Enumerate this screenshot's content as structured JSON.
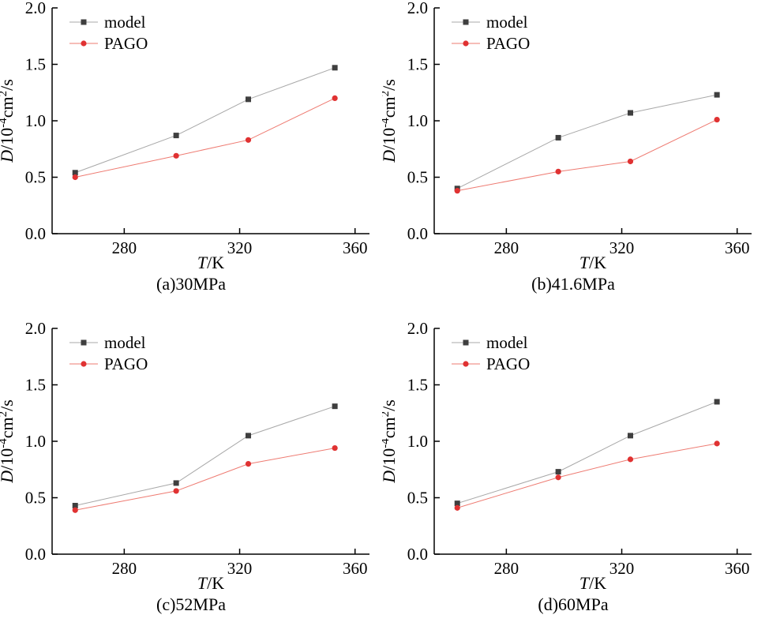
{
  "page": {
    "background": "#ffffff"
  },
  "chart_data": [
    {
      "type": "line",
      "caption": "(a)30MPa",
      "xlabel_text": "T/K",
      "ylabel_text": "D/10^-4 cm^2/s",
      "xlabel_parts": [
        {
          "t": "T",
          "italic": true
        },
        {
          "t": "/K"
        }
      ],
      "ylabel_parts": [
        {
          "t": "D",
          "italic": true
        },
        {
          "t": "/10"
        },
        {
          "t": "-4",
          "sup": true
        },
        {
          "t": "cm"
        },
        {
          "t": "2",
          "sup": true
        },
        {
          "t": "/s"
        }
      ],
      "xlim": [
        255,
        365
      ],
      "ylim": [
        0,
        2
      ],
      "xticks": [
        280,
        320,
        360
      ],
      "yticks": [
        "0.0",
        "0.5",
        "1.0",
        "1.5",
        "2.0"
      ],
      "x": [
        263,
        298,
        323,
        353
      ],
      "series": [
        {
          "name": "model",
          "marker": "square",
          "marker_color": "#3f3f3f",
          "line_color": "#a8a8a8",
          "values": [
            0.54,
            0.87,
            1.19,
            1.47
          ]
        },
        {
          "name": "PAGO",
          "marker": "circle",
          "marker_color": "#e03232",
          "line_color": "#ee7b72",
          "values": [
            0.5,
            0.69,
            0.83,
            1.2
          ]
        }
      ]
    },
    {
      "type": "line",
      "caption": "(b)41.6MPa",
      "xlabel_text": "T/K",
      "ylabel_text": "D/10^-4 cm^2/s",
      "xlabel_parts": [
        {
          "t": "T",
          "italic": true
        },
        {
          "t": "/K"
        }
      ],
      "ylabel_parts": [
        {
          "t": "D",
          "italic": true
        },
        {
          "t": "/10"
        },
        {
          "t": "-4",
          "sup": true
        },
        {
          "t": "cm"
        },
        {
          "t": "2",
          "sup": true
        },
        {
          "t": "/s"
        }
      ],
      "xlim": [
        255,
        365
      ],
      "ylim": [
        0,
        2
      ],
      "xticks": [
        280,
        320,
        360
      ],
      "yticks": [
        "0.0",
        "0.5",
        "1.0",
        "1.5",
        "2.0"
      ],
      "x": [
        263,
        298,
        323,
        353
      ],
      "series": [
        {
          "name": "model",
          "marker": "square",
          "marker_color": "#3f3f3f",
          "line_color": "#a8a8a8",
          "values": [
            0.4,
            0.85,
            1.07,
            1.23
          ]
        },
        {
          "name": "PAGO",
          "marker": "circle",
          "marker_color": "#e03232",
          "line_color": "#ee7b72",
          "values": [
            0.38,
            0.55,
            0.64,
            1.01
          ]
        }
      ]
    },
    {
      "type": "line",
      "caption": "(c)52MPa",
      "xlabel_text": "T/K",
      "ylabel_text": "D/10^-4 cm^2/s",
      "xlabel_parts": [
        {
          "t": "T",
          "italic": true
        },
        {
          "t": "/K"
        }
      ],
      "ylabel_parts": [
        {
          "t": "D",
          "italic": true
        },
        {
          "t": "/10"
        },
        {
          "t": "-4",
          "sup": true
        },
        {
          "t": "cm"
        },
        {
          "t": "2",
          "sup": true
        },
        {
          "t": "/s"
        }
      ],
      "xlim": [
        255,
        365
      ],
      "ylim": [
        0,
        2
      ],
      "xticks": [
        280,
        320,
        360
      ],
      "yticks": [
        "0.0",
        "0.5",
        "1.0",
        "1.5",
        "2.0"
      ],
      "x": [
        263,
        298,
        323,
        353
      ],
      "series": [
        {
          "name": "model",
          "marker": "square",
          "marker_color": "#3f3f3f",
          "line_color": "#a8a8a8",
          "values": [
            0.43,
            0.63,
            1.05,
            1.31
          ]
        },
        {
          "name": "PAGO",
          "marker": "circle",
          "marker_color": "#e03232",
          "line_color": "#ee7b72",
          "values": [
            0.39,
            0.56,
            0.8,
            0.94
          ]
        }
      ]
    },
    {
      "type": "line",
      "caption": "(d)60MPa",
      "xlabel_text": "T/K",
      "ylabel_text": "D/10^-4 cm^2/s",
      "xlabel_parts": [
        {
          "t": "T",
          "italic": true
        },
        {
          "t": "/K"
        }
      ],
      "ylabel_parts": [
        {
          "t": "D",
          "italic": true
        },
        {
          "t": "/10"
        },
        {
          "t": "-4",
          "sup": true
        },
        {
          "t": "cm"
        },
        {
          "t": "2",
          "sup": true
        },
        {
          "t": "/s"
        }
      ],
      "xlim": [
        255,
        365
      ],
      "ylim": [
        0,
        2
      ],
      "xticks": [
        280,
        320,
        360
      ],
      "yticks": [
        "0.0",
        "0.5",
        "1.0",
        "1.5",
        "2.0"
      ],
      "x": [
        263,
        298,
        323,
        353
      ],
      "series": [
        {
          "name": "model",
          "marker": "square",
          "marker_color": "#3f3f3f",
          "line_color": "#a8a8a8",
          "values": [
            0.45,
            0.73,
            1.05,
            1.35
          ]
        },
        {
          "name": "PAGO",
          "marker": "circle",
          "marker_color": "#e03232",
          "line_color": "#ee7b72",
          "values": [
            0.41,
            0.68,
            0.84,
            0.98
          ]
        }
      ]
    }
  ]
}
